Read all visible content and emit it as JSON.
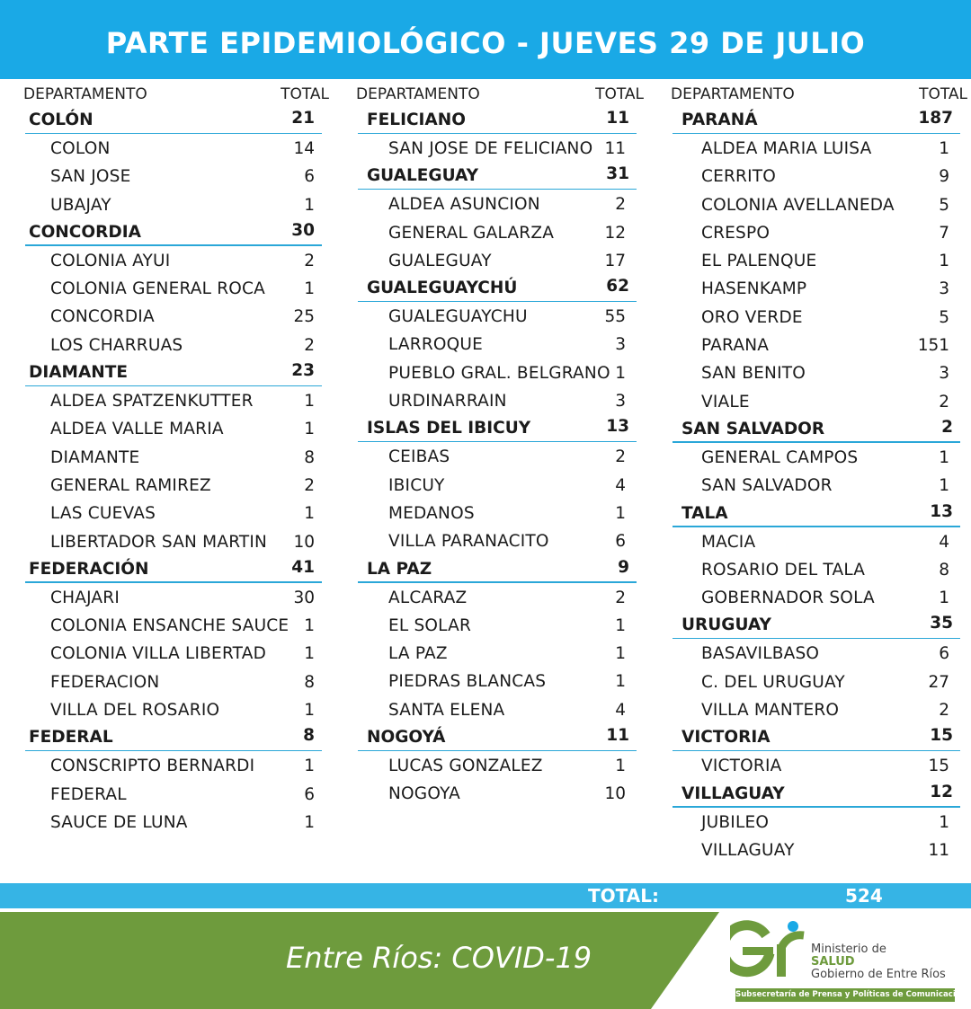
{
  "header": {
    "title": "PARTE EPIDEMIOLÓGICO - JUEVES 29 DE JULIO"
  },
  "table_header": {
    "department_label": "DEPARTAMENTO",
    "total_label": "TOTAL"
  },
  "columns": [
    [
      {
        "name": "COLÓN",
        "total": "21",
        "locations": [
          {
            "name": "COLON",
            "total": "14"
          },
          {
            "name": "SAN JOSE",
            "total": "6"
          },
          {
            "name": "UBAJAY",
            "total": "1"
          }
        ]
      },
      {
        "name": "CONCORDIA",
        "total": "30",
        "locations": [
          {
            "name": "COLONIA AYUI",
            "total": "2"
          },
          {
            "name": "COLONIA GENERAL ROCA",
            "total": "1"
          },
          {
            "name": "CONCORDIA",
            "total": "25"
          },
          {
            "name": "LOS CHARRUAS",
            "total": "2"
          }
        ]
      },
      {
        "name": "DIAMANTE",
        "total": "23",
        "locations": [
          {
            "name": "ALDEA SPATZENKUTTER",
            "total": "1"
          },
          {
            "name": "ALDEA VALLE MARIA",
            "total": "1"
          },
          {
            "name": "DIAMANTE",
            "total": "8"
          },
          {
            "name": "GENERAL RAMIREZ",
            "total": "2"
          },
          {
            "name": "LAS CUEVAS",
            "total": "1"
          },
          {
            "name": "LIBERTADOR SAN MARTIN",
            "total": "10"
          }
        ]
      },
      {
        "name": "FEDERACIÓN",
        "total": "41",
        "locations": [
          {
            "name": "CHAJARI",
            "total": "30"
          },
          {
            "name": "COLONIA ENSANCHE SAUCE",
            "total": "1"
          },
          {
            "name": "COLONIA VILLA LIBERTAD",
            "total": "1"
          },
          {
            "name": "FEDERACION",
            "total": "8"
          },
          {
            "name": "VILLA DEL ROSARIO",
            "total": "1"
          }
        ]
      },
      {
        "name": "FEDERAL",
        "total": "8",
        "locations": [
          {
            "name": "CONSCRIPTO BERNARDI",
            "total": "1"
          },
          {
            "name": "FEDERAL",
            "total": "6"
          },
          {
            "name": "SAUCE DE LUNA",
            "total": "1"
          }
        ]
      }
    ],
    [
      {
        "name": "FELICIANO",
        "total": "11",
        "locations": [
          {
            "name": "SAN JOSE DE FELICIANO",
            "total": "11"
          }
        ]
      },
      {
        "name": "GUALEGUAY",
        "total": "31",
        "locations": [
          {
            "name": "ALDEA ASUNCION",
            "total": "2"
          },
          {
            "name": "GENERAL GALARZA",
            "total": "12"
          },
          {
            "name": "GUALEGUAY",
            "total": "17"
          }
        ]
      },
      {
        "name": "GUALEGUAYCHÚ",
        "total": "62",
        "locations": [
          {
            "name": "GUALEGUAYCHU",
            "total": "55"
          },
          {
            "name": "LARROQUE",
            "total": "3"
          },
          {
            "name": "PUEBLO GRAL. BELGRANO",
            "total": "1"
          },
          {
            "name": "URDINARRAIN",
            "total": "3"
          }
        ]
      },
      {
        "name": "ISLAS DEL IBICUY",
        "total": "13",
        "locations": [
          {
            "name": "CEIBAS",
            "total": "2"
          },
          {
            "name": "IBICUY",
            "total": "4"
          },
          {
            "name": "MEDANOS",
            "total": "1"
          },
          {
            "name": "VILLA PARANACITO",
            "total": "6"
          }
        ]
      },
      {
        "name": "LA PAZ",
        "total": "9",
        "locations": [
          {
            "name": "ALCARAZ",
            "total": "2"
          },
          {
            "name": "EL SOLAR",
            "total": "1"
          },
          {
            "name": "LA PAZ",
            "total": "1"
          },
          {
            "name": "PIEDRAS BLANCAS",
            "total": "1"
          },
          {
            "name": "SANTA ELENA",
            "total": "4"
          }
        ]
      },
      {
        "name": "NOGOYÁ",
        "total": "11",
        "locations": [
          {
            "name": "LUCAS GONZALEZ",
            "total": "1"
          },
          {
            "name": "NOGOYA",
            "total": "10"
          }
        ]
      }
    ],
    [
      {
        "name": "PARANÁ",
        "total": "187",
        "locations": [
          {
            "name": "ALDEA MARIA LUISA",
            "total": "1"
          },
          {
            "name": "CERRITO",
            "total": "9"
          },
          {
            "name": "COLONIA AVELLANEDA",
            "total": "5"
          },
          {
            "name": "CRESPO",
            "total": "7"
          },
          {
            "name": "EL PALENQUE",
            "total": "1"
          },
          {
            "name": "HASENKAMP",
            "total": "3"
          },
          {
            "name": "ORO VERDE",
            "total": "5"
          },
          {
            "name": "PARANA",
            "total": "151"
          },
          {
            "name": "SAN BENITO",
            "total": "3"
          },
          {
            "name": "VIALE",
            "total": "2"
          }
        ]
      },
      {
        "name": "SAN SALVADOR",
        "total": "2",
        "locations": [
          {
            "name": "GENERAL CAMPOS",
            "total": "1"
          },
          {
            "name": "SAN SALVADOR",
            "total": "1"
          }
        ]
      },
      {
        "name": "TALA",
        "total": "13",
        "locations": [
          {
            "name": "MACIA",
            "total": "4"
          },
          {
            "name": "ROSARIO DEL TALA",
            "total": "8"
          },
          {
            "name": "GOBERNADOR SOLA",
            "total": "1"
          }
        ]
      },
      {
        "name": "URUGUAY",
        "total": "35",
        "locations": [
          {
            "name": "BASAVILBASO",
            "total": "6"
          },
          {
            "name": "C. DEL URUGUAY",
            "total": "27"
          },
          {
            "name": "VILLA MANTERO",
            "total": "2"
          }
        ]
      },
      {
        "name": "VICTORIA",
        "total": "15",
        "locations": [
          {
            "name": "VICTORIA",
            "total": "15"
          }
        ]
      },
      {
        "name": "VILLAGUAY",
        "total": "12",
        "locations": [
          {
            "name": "JUBILEO",
            "total": "1"
          },
          {
            "name": "VILLAGUAY",
            "total": "11"
          }
        ]
      }
    ]
  ],
  "summary": {
    "label": "TOTAL:",
    "value": "524"
  },
  "footer": {
    "tagline": "Entre Ríos: COVID-19",
    "logo": {
      "line1": "Ministerio de",
      "line2": "SALUD",
      "line3": "Gobierno de Entre Ríos",
      "strip": "Subsecretaría de Prensa y Políticas de Comunicación"
    }
  },
  "colors": {
    "header_bg": "#1aa9e6",
    "rule": "#2aa7d8",
    "total_bar": "#36b4e5",
    "footer_green": "#6e9b3d"
  }
}
